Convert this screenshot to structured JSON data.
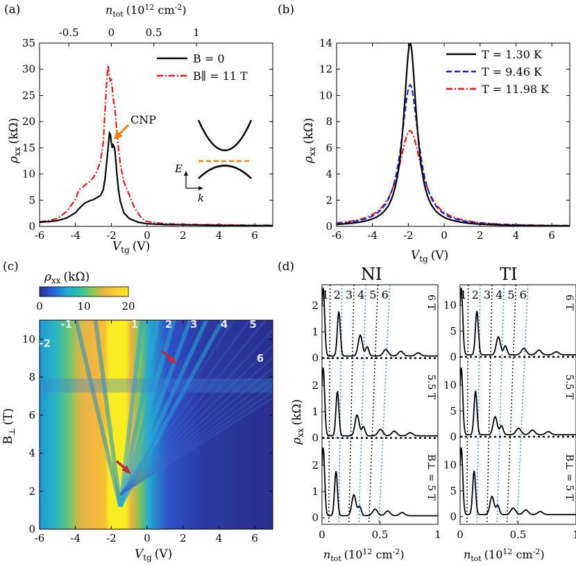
{
  "colors": {
    "black": "#000000",
    "red": "#e8151b",
    "blue": "#1428d8",
    "orange": "#f07d14",
    "dotted_blue": "#2a88d8",
    "dotted_black": "#000000",
    "heatmap_low": "#2a2f8f",
    "heatmap_high": "#f8ee20",
    "arrow_red": "#c8283c"
  },
  "panel_labels": [
    "(a)",
    "(b)",
    "(c)",
    "(d)"
  ],
  "chart_data": [
    {
      "id": "a",
      "type": "line",
      "xlabel": "V",
      "xlabel_sub": "tg",
      "xlabel_unit": "(V)",
      "ylabel": "ρ",
      "ylabel_sub": "xx",
      "ylabel_unit": "(kΩ)",
      "xlim": [
        -6,
        7
      ],
      "ylim": [
        0,
        35
      ],
      "xticks": [
        "-6",
        "-4",
        "-2",
        "0",
        "2",
        "4",
        "6"
      ],
      "xtick_values": [
        -6,
        -4,
        -2,
        0,
        2,
        4,
        6
      ],
      "yticks": [
        "0",
        "5",
        "10",
        "15",
        "20",
        "25",
        "30",
        "35"
      ],
      "ytick_values": [
        0,
        5,
        10,
        15,
        20,
        25,
        30,
        35
      ],
      "top_axis": {
        "label": "n",
        "label_sub": "tot",
        "unit_pre": "(10",
        "unit_exp": "12",
        "unit_mid": " cm",
        "unit_exp2": "-2",
        "unit_post": ")",
        "ticks": [
          "-0.5",
          "0",
          "0.5",
          "1"
        ],
        "tick_positions_v": [
          -4.37,
          -2.0,
          0.37,
          2.74
        ]
      },
      "series": [
        {
          "name": "B = 0",
          "style": "solid",
          "color": "black",
          "x": [
            -6,
            -5.5,
            -5,
            -4.5,
            -4,
            -3.8,
            -3.5,
            -3.2,
            -3.0,
            -2.8,
            -2.6,
            -2.45,
            -2.35,
            -2.25,
            -2.15,
            -2.1,
            -2.05,
            -2.0,
            -1.95,
            -1.9,
            -1.85,
            -1.8,
            -1.7,
            -1.6,
            -1.5,
            -1.3,
            -1.0,
            -0.5,
            0,
            1,
            2,
            4,
            6,
            7
          ],
          "y": [
            0.8,
            0.9,
            1.1,
            1.6,
            2.6,
            3.4,
            4.4,
            4.9,
            5.1,
            5.5,
            5.9,
            7.0,
            9.0,
            12.5,
            16.0,
            17.8,
            17.5,
            16.0,
            15.0,
            15.6,
            15.3,
            14.5,
            10.5,
            7.0,
            4.8,
            2.6,
            1.5,
            0.8,
            0.5,
            0.35,
            0.3,
            0.2,
            0.15,
            0.15
          ]
        },
        {
          "name": "B∥ = 11 T",
          "style": "dashdot",
          "color": "red",
          "x": [
            -6,
            -5.5,
            -5,
            -4.5,
            -4.2,
            -4.0,
            -3.8,
            -3.5,
            -3.2,
            -3.0,
            -2.8,
            -2.6,
            -2.45,
            -2.35,
            -2.25,
            -2.18,
            -2.12,
            -2.06,
            -2.0,
            -1.95,
            -1.9,
            -1.8,
            -1.7,
            -1.6,
            -1.5,
            -1.3,
            -1.0,
            -0.7,
            -0.3,
            0,
            1,
            2,
            4,
            6,
            7
          ],
          "y": [
            0.9,
            1.1,
            1.5,
            2.8,
            4.2,
            5.2,
            7.0,
            7.8,
            8.6,
            9.3,
            10.5,
            12.5,
            16.0,
            22.0,
            28.0,
            30.8,
            29.0,
            27.8,
            28.0,
            26.5,
            24.5,
            22.5,
            18.5,
            15.0,
            12.0,
            8.5,
            6.0,
            3.5,
            1.5,
            0.9,
            0.5,
            0.4,
            0.3,
            0.2,
            0.2
          ]
        }
      ],
      "annotation": {
        "text": "CNP",
        "target": [
          -2.0,
          16.0
        ]
      },
      "inset": {
        "ylabel": "E",
        "xlabel": "k"
      }
    },
    {
      "id": "b",
      "type": "line",
      "xlabel": "V",
      "xlabel_sub": "tg",
      "xlabel_unit": "(V)",
      "ylabel": "ρ",
      "ylabel_sub": "xx",
      "ylabel_unit": "(kΩ)",
      "xlim": [
        -6,
        7
      ],
      "ylim": [
        0,
        14
      ],
      "xticks": [
        "-6",
        "-4",
        "-2",
        "0",
        "2",
        "4",
        "6"
      ],
      "xtick_values": [
        -6,
        -4,
        -2,
        0,
        2,
        4,
        6
      ],
      "yticks": [
        "0",
        "2",
        "4",
        "6",
        "8",
        "10",
        "12",
        "14"
      ],
      "ytick_values": [
        0,
        2,
        4,
        6,
        8,
        10,
        12,
        14
      ],
      "series": [
        {
          "name": "T = 1.30 K",
          "style": "solid",
          "color": "black",
          "peak": 14.0,
          "width": 0.55
        },
        {
          "name": "T = 9.46 K",
          "style": "dashed",
          "color": "blue",
          "peak": 10.8,
          "width": 0.75
        },
        {
          "name": "T = 11.98 K",
          "style": "dashdot",
          "color": "red",
          "peak": 7.3,
          "width": 1.0
        }
      ],
      "center": -1.9
    },
    {
      "id": "c",
      "type": "heatmap",
      "xlabel": "V",
      "xlabel_sub": "tg",
      "xlabel_unit": "(V)",
      "ylabel": "B",
      "ylabel_sub": "⊥",
      "ylabel_unit": "(T)",
      "xlim": [
        -6,
        7
      ],
      "ylim": [
        0,
        11
      ],
      "xticks": [
        "-6",
        "-4",
        "-2",
        "0",
        "2",
        "4",
        "6"
      ],
      "xtick_values": [
        -6,
        -4,
        -2,
        0,
        2,
        4,
        6
      ],
      "yticks": [
        "0",
        "2",
        "4",
        "6",
        "8",
        "10"
      ],
      "ytick_values": [
        0,
        2,
        4,
        6,
        8,
        10
      ],
      "colorbar": {
        "label": "ρ",
        "label_sub": "xx",
        "unit": "(kΩ)",
        "ticks": [
          "0",
          "10",
          "20"
        ],
        "tick_values": [
          0,
          10,
          20
        ]
      },
      "fan_labels": [
        {
          "text": "-2",
          "x": -5.7,
          "y": 9.6
        },
        {
          "text": "-1",
          "x": -4.5,
          "y": 10.6
        },
        {
          "text": "1",
          "x": -0.7,
          "y": 10.6
        },
        {
          "text": "2",
          "x": 1.2,
          "y": 10.6
        },
        {
          "text": "3",
          "x": 2.6,
          "y": 10.6
        },
        {
          "text": "4",
          "x": 4.3,
          "y": 10.6
        },
        {
          "text": "5",
          "x": 5.9,
          "y": 10.6
        },
        {
          "text": "6",
          "x": 6.3,
          "y": 8.8
        }
      ],
      "fan_slopes": [
        -2,
        -1,
        1,
        2,
        3,
        4,
        5,
        6
      ],
      "arrows": [
        {
          "tip": [
            1.6,
            8.9
          ]
        },
        {
          "tip": [
            -0.7,
            2.6
          ]
        }
      ]
    },
    {
      "id": "d",
      "type": "line",
      "column_titles": [
        "NI",
        "TI"
      ],
      "xlabel": "n",
      "xlabel_sub": "tot",
      "xlabel_unit_pre": "(10",
      "xlabel_unit_exp": "12",
      "xlabel_unit_mid": " cm",
      "xlabel_unit_exp2": "-2",
      "xlabel_unit_post": ")",
      "ylabel": "ρ",
      "ylabel_sub": "xx",
      "ylabel_unit": "(kΩ)",
      "xlim": [
        0,
        1
      ],
      "xticks": [
        "0",
        "0.5",
        "1"
      ],
      "xtick_values": [
        0,
        0.5,
        1
      ],
      "ni_yticks": [
        "0",
        "1",
        "2"
      ],
      "ni_ytick_values": [
        0,
        1,
        2
      ],
      "ni_ylim": [
        -0.25,
        2.8
      ],
      "ti_yticks": [
        "0",
        "5",
        "10"
      ],
      "ti_ytick_values": [
        0,
        5,
        10
      ],
      "ti_ylim": [
        -1.5,
        14
      ],
      "rows": [
        {
          "field": "6 T",
          "B": 6
        },
        {
          "field": "5.5 T",
          "B": 5.5
        },
        {
          "field": "B⊥ = 5 T",
          "B": 5
        }
      ],
      "ll_labels": [
        "1",
        "2",
        "3",
        "4",
        "5",
        "6"
      ],
      "ll_colors": [
        "black",
        "dotted_blue",
        "black",
        "dotted_blue",
        "black",
        "dotted_blue"
      ]
    }
  ]
}
